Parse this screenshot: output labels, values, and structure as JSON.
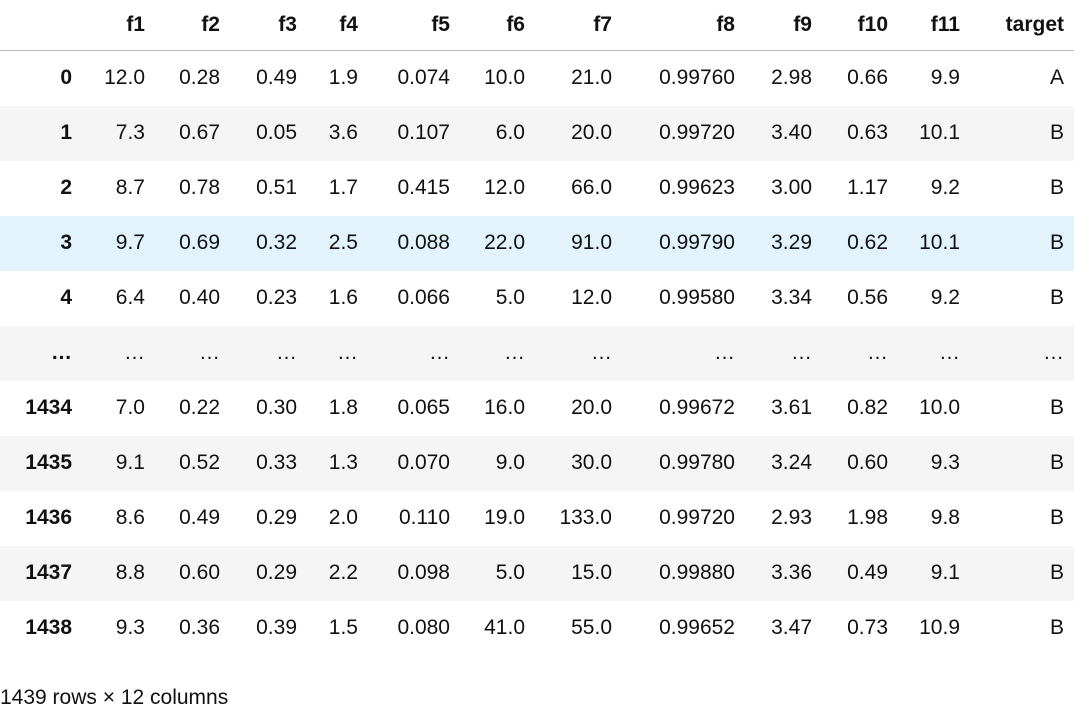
{
  "table": {
    "columns": [
      "f1",
      "f2",
      "f3",
      "f4",
      "f5",
      "f6",
      "f7",
      "f8",
      "f9",
      "f10",
      "f11",
      "target"
    ],
    "rows": [
      {
        "index": "0",
        "cells": [
          "12.0",
          "0.28",
          "0.49",
          "1.9",
          "0.074",
          "10.0",
          "21.0",
          "0.99760",
          "2.98",
          "0.66",
          "9.9",
          "A"
        ]
      },
      {
        "index": "1",
        "cells": [
          "7.3",
          "0.67",
          "0.05",
          "3.6",
          "0.107",
          "6.0",
          "20.0",
          "0.99720",
          "3.40",
          "0.63",
          "10.1",
          "B"
        ]
      },
      {
        "index": "2",
        "cells": [
          "8.7",
          "0.78",
          "0.51",
          "1.7",
          "0.415",
          "12.0",
          "66.0",
          "0.99623",
          "3.00",
          "1.17",
          "9.2",
          "B"
        ]
      },
      {
        "index": "3",
        "cells": [
          "9.7",
          "0.69",
          "0.32",
          "2.5",
          "0.088",
          "22.0",
          "91.0",
          "0.99790",
          "3.29",
          "0.62",
          "10.1",
          "B"
        ]
      },
      {
        "index": "4",
        "cells": [
          "6.4",
          "0.40",
          "0.23",
          "1.6",
          "0.066",
          "5.0",
          "12.0",
          "0.99580",
          "3.34",
          "0.56",
          "9.2",
          "B"
        ]
      },
      {
        "index": "…",
        "cells": [
          "…",
          "…",
          "…",
          "…",
          "…",
          "…",
          "…",
          "…",
          "…",
          "…",
          "…",
          "…"
        ]
      },
      {
        "index": "1434",
        "cells": [
          "7.0",
          "0.22",
          "0.30",
          "1.8",
          "0.065",
          "16.0",
          "20.0",
          "0.99672",
          "3.61",
          "0.82",
          "10.0",
          "B"
        ]
      },
      {
        "index": "1435",
        "cells": [
          "9.1",
          "0.52",
          "0.33",
          "1.3",
          "0.070",
          "9.0",
          "30.0",
          "0.99780",
          "3.24",
          "0.60",
          "9.3",
          "B"
        ]
      },
      {
        "index": "1436",
        "cells": [
          "8.6",
          "0.49",
          "0.29",
          "2.0",
          "0.110",
          "19.0",
          "133.0",
          "0.99720",
          "2.93",
          "1.98",
          "9.8",
          "B"
        ]
      },
      {
        "index": "1437",
        "cells": [
          "8.8",
          "0.60",
          "0.29",
          "2.2",
          "0.098",
          "5.0",
          "15.0",
          "0.99880",
          "3.36",
          "0.49",
          "9.1",
          "B"
        ]
      },
      {
        "index": "1438",
        "cells": [
          "9.3",
          "0.36",
          "0.39",
          "1.5",
          "0.080",
          "41.0",
          "55.0",
          "0.99652",
          "3.47",
          "0.73",
          "10.9",
          "B"
        ]
      }
    ]
  },
  "footer": "1439 rows × 12 columns"
}
